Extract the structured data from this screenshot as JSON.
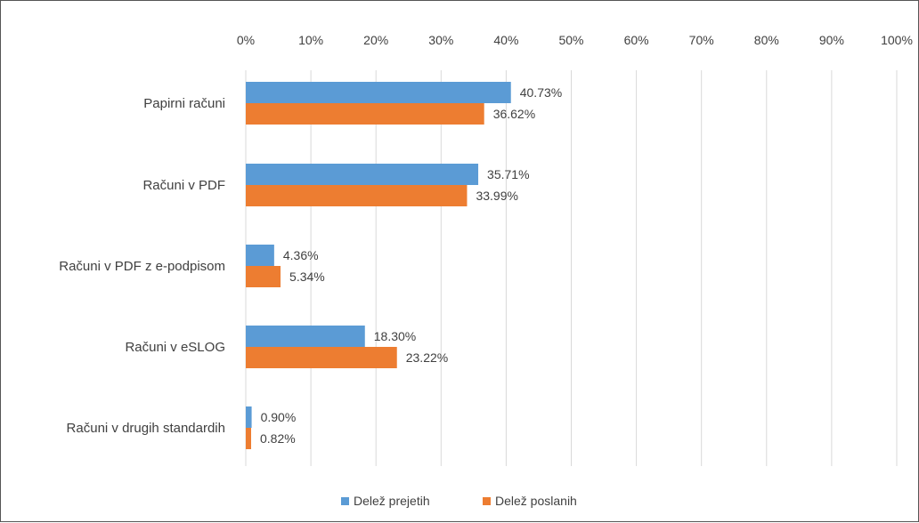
{
  "chart_data": {
    "type": "bar",
    "orientation": "horizontal",
    "title": "",
    "xlabel": "",
    "ylabel": "",
    "xlim": [
      0,
      100
    ],
    "x_ticks": [
      "0%",
      "10%",
      "20%",
      "30%",
      "40%",
      "50%",
      "60%",
      "70%",
      "80%",
      "90%",
      "100%"
    ],
    "x_axis_position": "top",
    "grid": true,
    "categories": [
      "Papirni računi",
      "Računi v PDF",
      "Računi v PDF z e-podpisom",
      "Računi v eSLOG",
      "Računi v drugih standardih"
    ],
    "series": [
      {
        "name": "Delež prejetih",
        "color": "#5B9BD5",
        "values": [
          40.73,
          35.71,
          4.36,
          18.3,
          0.9
        ],
        "labels": [
          "40.73%",
          "35.71%",
          "4.36%",
          "18.30%",
          "0.90%"
        ]
      },
      {
        "name": "Delež poslanih",
        "color": "#ED7D31",
        "values": [
          36.62,
          33.99,
          5.34,
          23.22,
          0.82
        ],
        "labels": [
          "36.62%",
          "33.99%",
          "5.34%",
          "23.22%",
          "0.82%"
        ]
      }
    ],
    "legend_position": "bottom"
  }
}
